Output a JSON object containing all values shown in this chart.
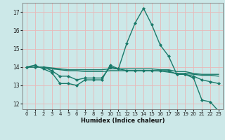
{
  "xlabel": "Humidex (Indice chaleur)",
  "background_color": "#cce8e8",
  "grid_color": "#e8b8b8",
  "line_color": "#1a7a6a",
  "x_ticks": [
    0,
    1,
    2,
    3,
    4,
    5,
    6,
    7,
    8,
    9,
    10,
    11,
    12,
    13,
    14,
    15,
    16,
    17,
    18,
    19,
    20,
    21,
    22,
    23
  ],
  "y_ticks": [
    12,
    13,
    14,
    15,
    16,
    17
  ],
  "xlim": [
    -0.5,
    23.5
  ],
  "ylim": [
    11.7,
    17.5
  ],
  "series": [
    {
      "x": [
        0,
        1,
        2,
        3,
        4,
        5,
        6,
        7,
        8,
        9,
        10,
        11,
        12,
        13,
        14,
        15,
        16,
        17,
        18,
        19,
        20,
        21,
        22,
        23
      ],
      "y": [
        14.0,
        14.1,
        13.9,
        13.7,
        13.1,
        13.1,
        13.0,
        13.3,
        13.3,
        13.3,
        14.1,
        13.9,
        15.3,
        16.4,
        17.2,
        16.3,
        15.2,
        14.6,
        13.6,
        13.6,
        13.4,
        12.2,
        12.1,
        11.6
      ],
      "color": "#1a7a6a",
      "lw": 1.0,
      "marker": "D",
      "ms": 2.0
    },
    {
      "x": [
        0,
        1,
        2,
        3,
        4,
        5,
        6,
        7,
        8,
        9,
        10,
        11,
        12,
        13,
        14,
        15,
        16,
        17,
        18,
        19,
        20,
        21,
        22,
        23
      ],
      "y": [
        14.0,
        14.0,
        14.0,
        13.95,
        13.9,
        13.85,
        13.85,
        13.85,
        13.85,
        13.85,
        13.9,
        13.9,
        13.9,
        13.9,
        13.9,
        13.9,
        13.85,
        13.85,
        13.75,
        13.75,
        13.65,
        13.6,
        13.6,
        13.6
      ],
      "color": "#1a7a6a",
      "lw": 1.0,
      "marker": null,
      "ms": 0
    },
    {
      "x": [
        0,
        1,
        2,
        3,
        4,
        5,
        6,
        7,
        8,
        9,
        10,
        11,
        12,
        13,
        14,
        15,
        16,
        17,
        18,
        19,
        20,
        21,
        22,
        23
      ],
      "y": [
        14.0,
        14.0,
        14.0,
        13.9,
        13.85,
        13.8,
        13.8,
        13.75,
        13.75,
        13.75,
        13.8,
        13.8,
        13.8,
        13.8,
        13.8,
        13.8,
        13.78,
        13.72,
        13.65,
        13.65,
        13.6,
        13.55,
        13.55,
        13.5
      ],
      "color": "#1a7a6a",
      "lw": 1.0,
      "marker": null,
      "ms": 0
    },
    {
      "x": [
        0,
        1,
        2,
        3,
        4,
        5,
        6,
        7,
        8,
        9,
        10,
        11,
        12,
        13,
        14,
        15,
        16,
        17,
        18,
        19,
        20,
        21,
        22,
        23
      ],
      "y": [
        14.0,
        14.0,
        14.0,
        13.8,
        13.5,
        13.5,
        13.3,
        13.4,
        13.4,
        13.4,
        14.0,
        13.9,
        13.8,
        13.8,
        13.8,
        13.8,
        13.8,
        13.8,
        13.6,
        13.6,
        13.5,
        13.3,
        13.2,
        13.1
      ],
      "color": "#1a7a6a",
      "lw": 1.0,
      "marker": "D",
      "ms": 2.0
    }
  ]
}
